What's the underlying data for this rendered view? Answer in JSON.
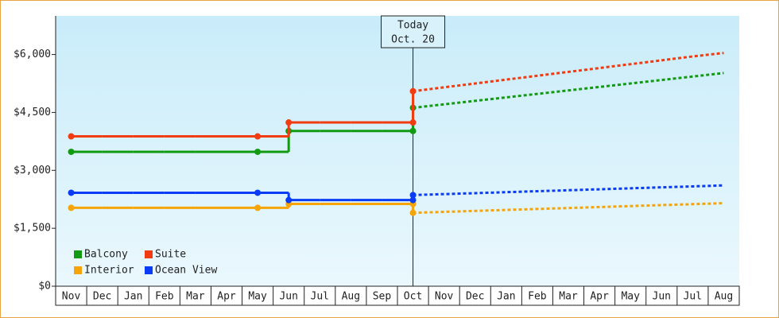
{
  "chart_data": {
    "type": "step",
    "categories": [
      "Nov",
      "Dec",
      "Jan",
      "Feb",
      "Mar",
      "Apr",
      "May",
      "Jun",
      "Jul",
      "Aug",
      "Sep",
      "Oct",
      "Nov",
      "Dec",
      "Jan",
      "Feb",
      "Mar",
      "Apr",
      "May",
      "Jun",
      "Jul",
      "Aug"
    ],
    "ylim": [
      0,
      7000
    ],
    "yticks": [
      {
        "value": 0,
        "label": "$0"
      },
      {
        "value": 1500,
        "label": "$1,500"
      },
      {
        "value": 3000,
        "label": "$3,000"
      },
      {
        "value": 4500,
        "label": "$4,500"
      },
      {
        "value": 6000,
        "label": "$6,000"
      }
    ],
    "annotation": [
      "Today",
      "Oct. 20"
    ],
    "series": [
      {
        "name": "Balcony",
        "color": "#139a13",
        "values": [
          3480,
          3480,
          3480,
          3480,
          3480,
          3480,
          3480,
          4020,
          4020,
          4020,
          4020,
          4020,
          null,
          null,
          null,
          null,
          null,
          null,
          null,
          null,
          null,
          null
        ],
        "forecast": [
          null,
          null,
          null,
          null,
          null,
          null,
          null,
          null,
          null,
          null,
          null,
          4620,
          4710,
          4800,
          4890,
          4980,
          5070,
          5160,
          5250,
          5340,
          5430,
          5520
        ]
      },
      {
        "name": "Suite",
        "color": "#f03c10",
        "values": [
          3880,
          3880,
          3880,
          3880,
          3880,
          3880,
          3880,
          4240,
          4240,
          4240,
          4240,
          4240,
          null,
          null,
          null,
          null,
          null,
          null,
          null,
          null,
          null,
          null
        ],
        "forecast": [
          null,
          null,
          null,
          null,
          null,
          null,
          null,
          null,
          null,
          null,
          null,
          5050,
          5150,
          5250,
          5350,
          5450,
          5550,
          5650,
          5750,
          5850,
          5950,
          6040
        ]
      },
      {
        "name": "Interior",
        "color": "#f5a50a",
        "values": [
          2030,
          2030,
          2030,
          2030,
          2030,
          2030,
          2030,
          2130,
          2130,
          2130,
          2130,
          2130,
          null,
          null,
          null,
          null,
          null,
          null,
          null,
          null,
          null,
          null
        ],
        "forecast": [
          null,
          null,
          null,
          null,
          null,
          null,
          null,
          null,
          null,
          null,
          null,
          1900,
          1925,
          1950,
          1975,
          2000,
          2025,
          2050,
          2075,
          2100,
          2125,
          2150
        ]
      },
      {
        "name": "Ocean View",
        "color": "#0a3cf5",
        "values": [
          2420,
          2420,
          2420,
          2420,
          2420,
          2420,
          2420,
          2230,
          2230,
          2230,
          2230,
          2230,
          null,
          null,
          null,
          null,
          null,
          null,
          null,
          null,
          null,
          null
        ],
        "forecast": [
          null,
          null,
          null,
          null,
          null,
          null,
          null,
          null,
          null,
          null,
          null,
          2360,
          2385,
          2410,
          2435,
          2460,
          2485,
          2510,
          2535,
          2560,
          2585,
          2610
        ]
      }
    ]
  }
}
